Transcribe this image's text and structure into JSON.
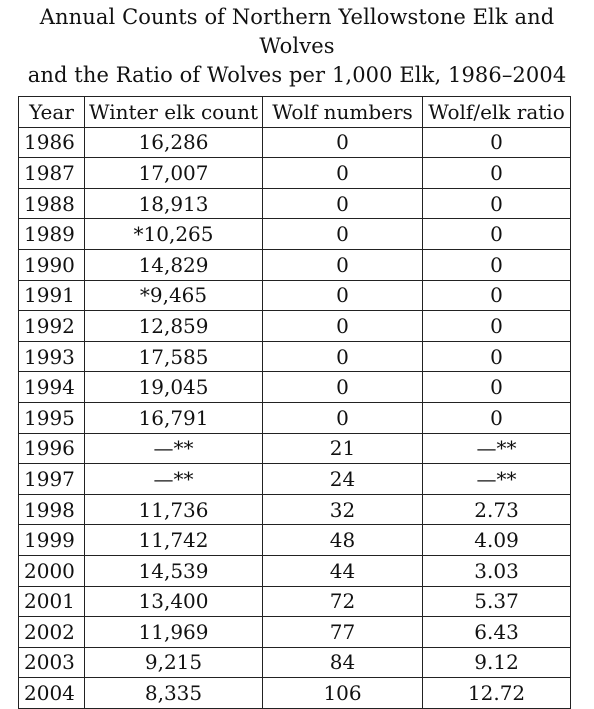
{
  "chart_data": {
    "type": "table",
    "title": "Annual Counts of Northern Yellowstone Elk and Wolves and the Ratio of Wolves per 1,000 Elk, 1986–2004",
    "title_lines": [
      "Annual Counts of Northern Yellowstone Elk and Wolves",
      "and the Ratio of Wolves per 1,000 Elk, 1986–2004"
    ],
    "columns": [
      "Year",
      "Winter elk count",
      "Wolf numbers",
      "Wolf/elk ratio"
    ],
    "rows": [
      [
        "1986",
        "16,286",
        "0",
        "0"
      ],
      [
        "1987",
        "17,007",
        "0",
        "0"
      ],
      [
        "1988",
        "18,913",
        "0",
        "0"
      ],
      [
        "1989",
        "*10,265",
        "0",
        "0"
      ],
      [
        "1990",
        "14,829",
        "0",
        "0"
      ],
      [
        "1991",
        "*9,465",
        "0",
        "0"
      ],
      [
        "1992",
        "12,859",
        "0",
        "0"
      ],
      [
        "1993",
        "17,585",
        "0",
        "0"
      ],
      [
        "1994",
        "19,045",
        "0",
        "0"
      ],
      [
        "1995",
        "16,791",
        "0",
        "0"
      ],
      [
        "1996",
        "—**",
        "21",
        "—**"
      ],
      [
        "1997",
        "—**",
        "24",
        "—**"
      ],
      [
        "1998",
        "11,736",
        "32",
        "2.73"
      ],
      [
        "1999",
        "11,742",
        "48",
        "4.09"
      ],
      [
        "2000",
        "14,539",
        "44",
        "3.03"
      ],
      [
        "2001",
        "13,400",
        "72",
        "5.37"
      ],
      [
        "2002",
        "11,969",
        "77",
        "6.43"
      ],
      [
        "2003",
        "9,215",
        "84",
        "9.12"
      ],
      [
        "2004",
        "8,335",
        "106",
        "12.72"
      ]
    ]
  }
}
